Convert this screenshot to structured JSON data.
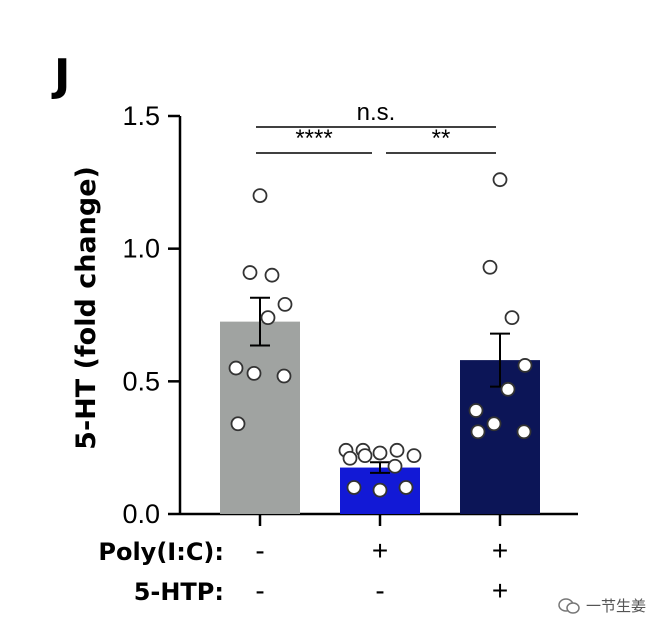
{
  "panel_letter": "J",
  "chart_data": {
    "type": "bar",
    "ylabel": "5-HT (fold change)",
    "ylim": [
      0,
      1.5
    ],
    "yticks": [
      0.0,
      0.5,
      1.0,
      1.5
    ],
    "ytick_labels": [
      "0.0",
      "0.5",
      "1.0",
      "1.5"
    ],
    "groups": [
      {
        "mean": 0.725,
        "sem": 0.09,
        "color": "#a0a3a1",
        "points": [
          1.2,
          0.91,
          0.9,
          0.79,
          0.74,
          0.55,
          0.53,
          0.52,
          0.34
        ]
      },
      {
        "mean": 0.175,
        "sem": 0.02,
        "color": "#1219d6",
        "points": [
          0.24,
          0.24,
          0.23,
          0.24,
          0.22,
          0.21,
          0.22,
          0.18,
          0.1,
          0.09,
          0.1
        ]
      },
      {
        "mean": 0.58,
        "sem": 0.1,
        "color": "#0c1557",
        "points": [
          1.26,
          0.93,
          0.74,
          0.56,
          0.47,
          0.39,
          0.34,
          0.31,
          0.31
        ]
      }
    ],
    "conditions": [
      {
        "label": "Poly(I:C):",
        "values": [
          "-",
          "+",
          "+"
        ]
      },
      {
        "label": "5-HTP:",
        "values": [
          "-",
          "-",
          "+"
        ]
      }
    ],
    "significance": [
      {
        "from": 0,
        "to": 2,
        "label": "n.s."
      },
      {
        "from": 0,
        "to": 1,
        "label": "****"
      },
      {
        "from": 1,
        "to": 2,
        "label": "**"
      }
    ]
  },
  "watermark": {
    "text": "一节生姜"
  }
}
